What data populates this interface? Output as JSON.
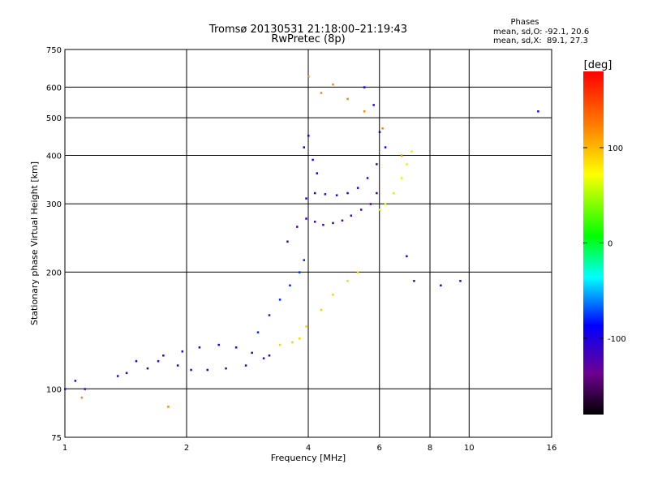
{
  "chart_data": {
    "type": "scatter",
    "title": "Tromsø 20130531 21:18:00–21:19:43",
    "subtitle": "RwPretec (8p)",
    "xlabel": "Frequency [MHz]",
    "ylabel": "Stationary phase Virtual Height [km]",
    "x_scale": "log2",
    "y_scale": "log",
    "xlim": [
      1,
      16
    ],
    "ylim": [
      75,
      750
    ],
    "x_ticks": [
      {
        "value": 1,
        "label": "1"
      },
      {
        "value": 2,
        "label": "2"
      },
      {
        "value": 4,
        "label": "4"
      },
      {
        "value": 6,
        "label": "6"
      },
      {
        "value": 8,
        "label": "8"
      },
      {
        "value": 10,
        "label": "10"
      },
      {
        "value": 16,
        "label": "16"
      }
    ],
    "y_ticks": [
      {
        "value": 75,
        "label": "75"
      },
      {
        "value": 100,
        "label": "100"
      },
      {
        "value": 200,
        "label": "200"
      },
      {
        "value": 300,
        "label": "300"
      },
      {
        "value": 400,
        "label": "400"
      },
      {
        "value": 500,
        "label": "500"
      },
      {
        "value": 600,
        "label": "600"
      },
      {
        "value": 750,
        "label": "750"
      }
    ],
    "grid": true,
    "stats": {
      "title": "Phases",
      "line_o": "mean, sd,O: -92.1, 20.6",
      "line_x": "mean, sd,X:  89.1, 27.3"
    },
    "colorbar": {
      "label": "[deg]",
      "range": [
        -180,
        180
      ],
      "ticks": [
        {
          "value": 100,
          "label": "100"
        },
        {
          "value": 0,
          "label": "0"
        },
        {
          "value": -100,
          "label": "-100"
        }
      ]
    },
    "point_groups": [
      {
        "x": [
          1.0,
          1.06,
          1.12,
          1.35,
          1.42,
          1.6,
          1.7,
          1.9,
          2.05,
          2.25,
          2.5,
          2.8,
          3.1
        ],
        "y": [
          100,
          105,
          100,
          108,
          110,
          113,
          118,
          115,
          112,
          112,
          113,
          115,
          120
        ],
        "phase": -110
      },
      {
        "x": [
          1.5,
          1.75,
          1.95,
          2.15,
          2.4,
          2.65,
          2.9,
          3.2
        ],
        "y": [
          118,
          122,
          125,
          128,
          130,
          128,
          124,
          122
        ],
        "phase": -100
      },
      {
        "x": [
          3.0,
          3.2,
          3.4,
          3.6,
          3.8,
          3.9
        ],
        "y": [
          140,
          155,
          170,
          185,
          200,
          215
        ],
        "phase": -80
      },
      {
        "x": [
          3.55,
          3.75,
          3.95,
          4.15,
          4.35,
          4.6,
          4.85,
          5.1,
          5.4,
          5.7,
          5.9
        ],
        "y": [
          240,
          262,
          275,
          270,
          265,
          268,
          272,
          280,
          290,
          300,
          320
        ],
        "phase": -115
      },
      {
        "x": [
          3.95,
          4.15,
          4.4,
          4.7,
          5.0,
          5.3,
          5.6,
          5.9
        ],
        "y": [
          310,
          320,
          318,
          316,
          320,
          330,
          350,
          380
        ],
        "phase": -100
      },
      {
        "x": [
          3.9,
          4.0,
          4.1,
          4.2,
          5.5,
          5.8,
          6.0,
          6.2
        ],
        "y": [
          420,
          450,
          390,
          360,
          600,
          540,
          460,
          420
        ],
        "phase": -90
      },
      {
        "x": [
          3.4,
          3.65,
          3.8,
          3.95,
          4.3,
          4.6,
          5.0,
          5.3
        ],
        "y": [
          130,
          132,
          135,
          145,
          160,
          175,
          190,
          200
        ],
        "phase": 90
      },
      {
        "x": [
          6.0,
          6.2,
          6.5,
          6.8,
          7.0,
          7.2
        ],
        "y": [
          290,
          300,
          320,
          350,
          380,
          410
        ],
        "phase": 60
      },
      {
        "x": [
          4.0,
          4.3,
          4.6,
          5.0,
          5.5,
          6.1,
          6.8,
          1.1,
          1.8
        ],
        "y": [
          640,
          580,
          610,
          560,
          520,
          470,
          400,
          95,
          90
        ],
        "phase": 120
      },
      {
        "x": [
          7.0,
          7.3,
          8.5,
          9.5,
          14.8
        ],
        "y": [
          220,
          190,
          185,
          190,
          520
        ],
        "phase": -100
      }
    ]
  }
}
